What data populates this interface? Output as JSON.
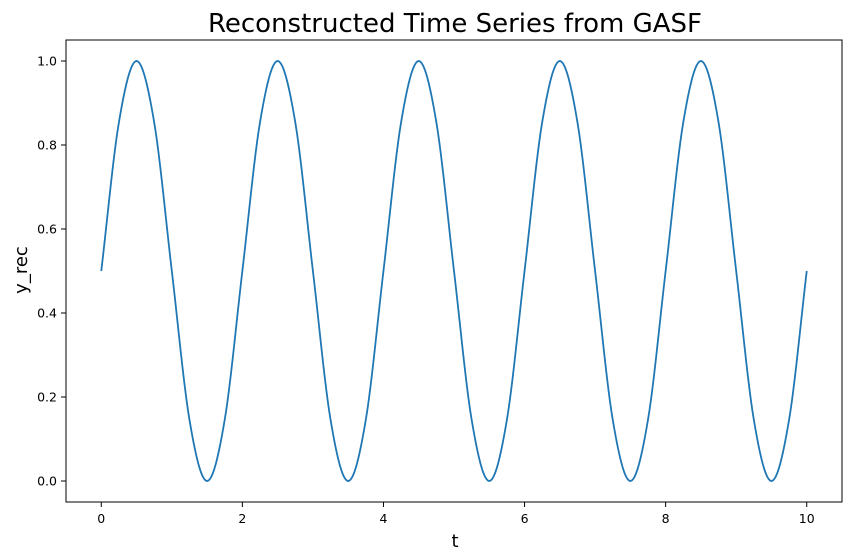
{
  "chart_data": {
    "type": "line",
    "title": "Reconstructed Time Series from GASF",
    "xlabel": "t",
    "ylabel": "y_rec",
    "xlim": [
      -0.5,
      10.5
    ],
    "ylim": [
      -0.05,
      1.05
    ],
    "xticks": [
      0,
      2,
      4,
      6,
      8,
      10
    ],
    "xtick_labels": [
      "0",
      "2",
      "4",
      "6",
      "8",
      "10"
    ],
    "yticks": [
      0.0,
      0.2,
      0.4,
      0.6,
      0.8,
      1.0
    ],
    "ytick_labels": [
      "0.0",
      "0.2",
      "0.4",
      "0.6",
      "0.8",
      "1.0"
    ],
    "grid": false,
    "series": [
      {
        "color": "#1f77b4",
        "x": [
          0,
          0.25,
          0.5,
          0.75,
          1.0,
          1.25,
          1.5,
          1.75,
          2.0,
          2.25,
          2.5,
          2.75,
          3.0,
          3.25,
          3.5,
          3.75,
          4.0,
          4.25,
          4.5,
          4.75,
          5.0,
          5.25,
          5.5,
          5.75,
          6.0,
          6.25,
          6.5,
          6.75,
          7.0,
          7.25,
          7.5,
          7.75,
          8.0,
          8.25,
          8.5,
          8.75,
          9.0,
          9.25,
          9.5,
          9.75,
          10.0
        ],
        "y": [
          0.5,
          0.854,
          1.0,
          0.854,
          0.5,
          0.146,
          0.0,
          0.146,
          0.5,
          0.854,
          1.0,
          0.854,
          0.5,
          0.146,
          0.0,
          0.146,
          0.5,
          0.854,
          1.0,
          0.854,
          0.5,
          0.146,
          0.0,
          0.146,
          0.5,
          0.854,
          1.0,
          0.854,
          0.5,
          0.146,
          0.0,
          0.146,
          0.5,
          0.854,
          1.0,
          0.854,
          0.5,
          0.146,
          0.0,
          0.146,
          0.5
        ]
      }
    ]
  }
}
